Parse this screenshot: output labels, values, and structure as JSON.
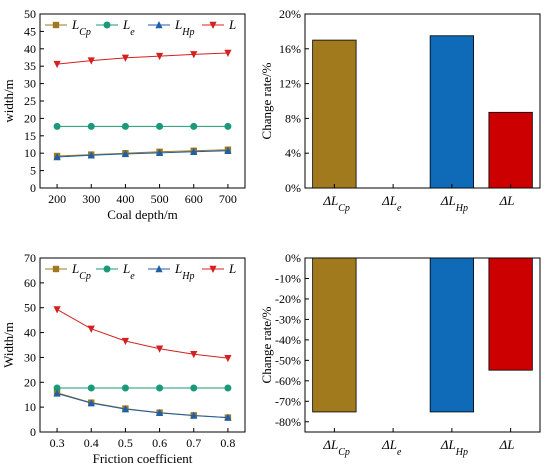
{
  "chart_data": [
    {
      "type": "line",
      "id": "a",
      "x": [
        200,
        300,
        400,
        500,
        600,
        700
      ],
      "xlabel": "Coal depth/m",
      "ylabel": "width/m",
      "xlim": [
        150,
        750
      ],
      "ylim": [
        0,
        50
      ],
      "xticks": [
        "200",
        "300",
        "400",
        "500",
        "600",
        "700"
      ],
      "yticks": [
        "0",
        "5",
        "10",
        "15",
        "20",
        "25",
        "30",
        "35",
        "40",
        "45",
        "50"
      ],
      "grid": false,
      "legend_position": "top",
      "series": [
        {
          "label_main": "L",
          "label_sub": "Cp",
          "color": "#a07820",
          "marker": "square",
          "values": [
            9.2,
            9.6,
            10.0,
            10.4,
            10.7,
            11.0
          ]
        },
        {
          "label_main": "L",
          "label_sub": "e",
          "color": "#1a9a7a",
          "marker": "circle",
          "values": [
            17.7,
            17.7,
            17.7,
            17.7,
            17.7,
            17.7
          ]
        },
        {
          "label_main": "L",
          "label_sub": "Hp",
          "color": "#1f5fa8",
          "marker": "triangle-up",
          "values": [
            8.9,
            9.4,
            9.8,
            10.1,
            10.4,
            10.7
          ]
        },
        {
          "label_main": "L",
          "label_sub": "",
          "color": "#d42020",
          "marker": "triangle-down",
          "values": [
            35.6,
            36.6,
            37.4,
            37.9,
            38.4,
            38.8
          ]
        }
      ]
    },
    {
      "type": "bar",
      "id": "b",
      "ylabel": "Change rate/%",
      "ylim": [
        0,
        20
      ],
      "yticks": [
        "0%",
        "4%",
        "8%",
        "12%",
        "16%",
        "20%"
      ],
      "grid": false,
      "categories": [
        {
          "main": "ΔL",
          "sub": "Cp"
        },
        {
          "main": "ΔL",
          "sub": "e"
        },
        {
          "main": "ΔL",
          "sub": "Hp"
        },
        {
          "main": "ΔL",
          "sub": ""
        }
      ],
      "values": [
        17.0,
        0,
        17.5,
        8.7
      ],
      "colors": [
        "#a07a1c",
        "#ffffff",
        "#0f6ab8",
        "#cc0000"
      ]
    },
    {
      "type": "line",
      "id": "c",
      "x": [
        0.3,
        0.4,
        0.5,
        0.6,
        0.7,
        0.8
      ],
      "xlabel": "Friction coefficient",
      "ylabel": "Width/m",
      "xlim": [
        0.25,
        0.85
      ],
      "ylim": [
        0,
        70
      ],
      "xticks": [
        "0.3",
        "0.4",
        "0.5",
        "0.6",
        "0.7",
        "0.8"
      ],
      "yticks": [
        "0",
        "10",
        "20",
        "30",
        "40",
        "50",
        "60",
        "70"
      ],
      "grid": false,
      "legend_position": "top",
      "series": [
        {
          "label_main": "L",
          "label_sub": "Cp",
          "color": "#a07820",
          "marker": "square",
          "values": [
            15.8,
            11.8,
            9.4,
            7.8,
            6.7,
            5.8
          ]
        },
        {
          "label_main": "L",
          "label_sub": "e",
          "color": "#1a9a7a",
          "marker": "circle",
          "values": [
            17.7,
            17.7,
            17.7,
            17.7,
            17.7,
            17.7
          ]
        },
        {
          "label_main": "L",
          "label_sub": "Hp",
          "color": "#1f5fa8",
          "marker": "triangle-up",
          "values": [
            15.5,
            11.6,
            9.2,
            7.7,
            6.6,
            5.8
          ]
        },
        {
          "label_main": "L",
          "label_sub": "",
          "color": "#d42020",
          "marker": "triangle-down",
          "values": [
            49.3,
            41.5,
            36.6,
            33.5,
            31.3,
            29.7
          ]
        }
      ]
    },
    {
      "type": "bar",
      "id": "d",
      "ylabel": "Change rate/%",
      "ylim": [
        -85,
        0
      ],
      "yticks": [
        "0%",
        "-10%",
        "-20%",
        "-30%",
        "-40%",
        "-50%",
        "-60%",
        "-70%",
        "-80%"
      ],
      "grid": false,
      "categories": [
        {
          "main": "ΔL",
          "sub": "Cp"
        },
        {
          "main": "ΔL",
          "sub": "e"
        },
        {
          "main": "ΔL",
          "sub": "Hp"
        },
        {
          "main": "ΔL",
          "sub": ""
        }
      ],
      "values": [
        -75.2,
        0,
        -75.2,
        -54.8
      ],
      "colors": [
        "#a07a1c",
        "#ffffff",
        "#0f6ab8",
        "#cc0000"
      ]
    }
  ]
}
